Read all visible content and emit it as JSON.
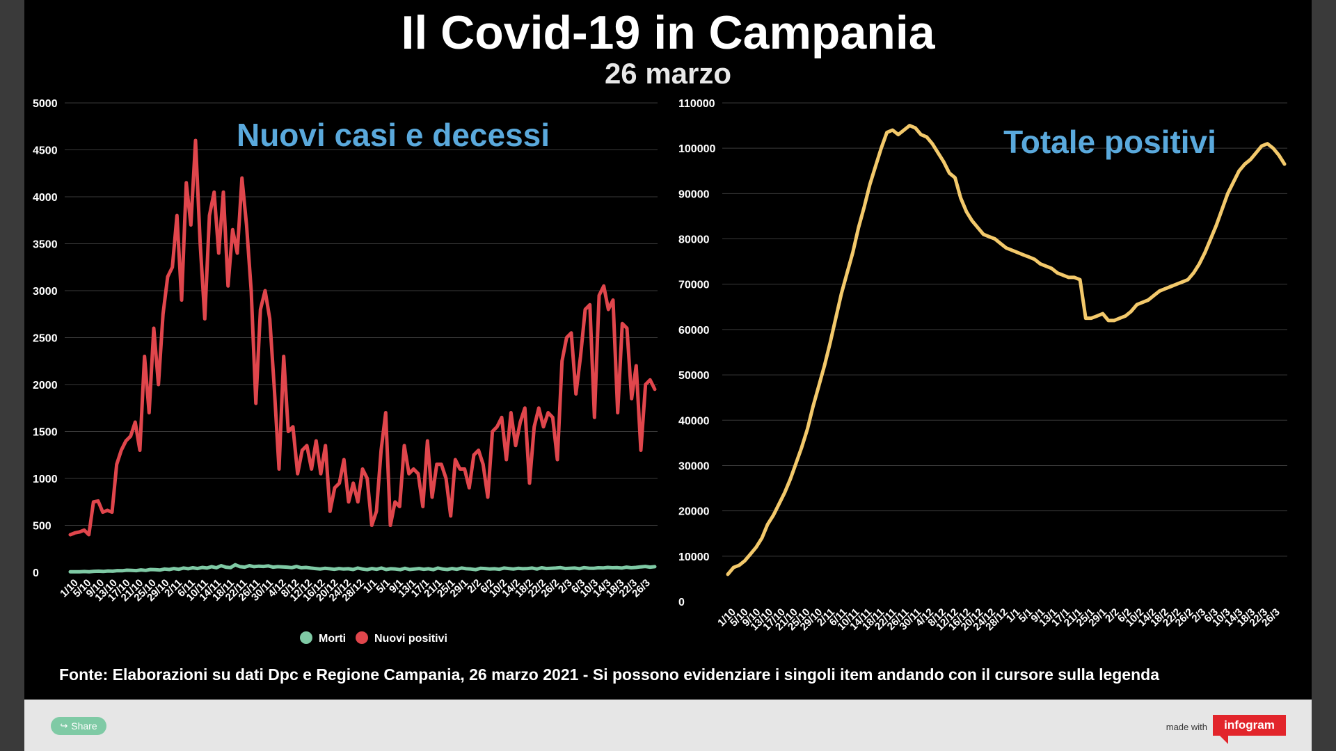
{
  "title": "Il Covid-19 in Campania",
  "subtitle": "26 marzo",
  "source": "Fonte: Elaborazioni su dati Dpc e Regione Campania, 26 marzo 2021 - Si possono evidenziare i singoli item andando con il cursore sulla legenda",
  "footer": {
    "share_label": "Share",
    "made_with": "made with",
    "brand": "infogram"
  },
  "colors": {
    "nuovi_positivi": "#e0464c",
    "morti": "#7fcaa5",
    "totale_positivi": "#f3c96b",
    "chart_title": "#5aa9dc"
  },
  "chart_data": [
    {
      "type": "line",
      "title": "Nuovi casi e decessi",
      "ylim": [
        0,
        5000
      ],
      "yticks": [
        0,
        500,
        1000,
        1500,
        2000,
        2500,
        3000,
        3500,
        4000,
        4500,
        5000
      ],
      "xticks": [
        "1/10",
        "5/10",
        "9/10",
        "13/10",
        "17/10",
        "21/10",
        "25/10",
        "29/10",
        "2/11",
        "6/11",
        "10/11",
        "14/11",
        "18/11",
        "22/11",
        "26/11",
        "30/11",
        "4/12",
        "8/12",
        "12/12",
        "16/12",
        "20/12",
        "24/12",
        "28/12",
        "1/1",
        "5/1",
        "9/1",
        "13/1",
        "17/1",
        "21/1",
        "25/1",
        "29/1",
        "2/2",
        "6/2",
        "10/2",
        "14/2",
        "18/2",
        "22/2",
        "26/2",
        "2/3",
        "6/3",
        "10/3",
        "14/3",
        "18/3",
        "22/3",
        "26/3"
      ],
      "legend": [
        "Morti",
        "Nuovi positivi"
      ],
      "legend_position": "bottom",
      "grid": true,
      "series": [
        {
          "name": "Nuovi positivi",
          "values": [
            400,
            420,
            430,
            450,
            400,
            750,
            760,
            640,
            660,
            640,
            1150,
            1300,
            1400,
            1450,
            1600,
            1300,
            2300,
            1700,
            2600,
            2000,
            2750,
            3150,
            3250,
            3800,
            2900,
            4150,
            3700,
            4600,
            3500,
            2700,
            3800,
            4050,
            3400,
            4050,
            3050,
            3650,
            3400,
            4200,
            3700,
            3000,
            1800,
            2800,
            3000,
            2700,
            1950,
            1100,
            2300,
            1500,
            1550,
            1050,
            1300,
            1350,
            1100,
            1400,
            1050,
            1350,
            650,
            900,
            950,
            1200,
            750,
            950,
            750,
            1100,
            1000,
            500,
            650,
            1300,
            1700,
            500,
            750,
            700,
            1350,
            1050,
            1100,
            1050,
            700,
            1400,
            800,
            1150,
            1150,
            1000,
            600,
            1200,
            1100,
            1100,
            900,
            1250,
            1300,
            1150,
            800,
            1500,
            1550,
            1650,
            1200,
            1700,
            1350,
            1600,
            1750,
            950,
            1550,
            1750,
            1550,
            1700,
            1650,
            1200,
            2250,
            2500,
            2550,
            1900,
            2300,
            2800,
            2850,
            1650,
            2950,
            3050,
            2800,
            2900,
            1700,
            2650,
            2600,
            1850,
            2200,
            1300,
            2000,
            2050,
            1950
          ]
        },
        {
          "name": "Morti",
          "values": [
            5,
            6,
            5,
            8,
            6,
            10,
            12,
            9,
            14,
            12,
            18,
            16,
            22,
            20,
            18,
            25,
            20,
            30,
            28,
            24,
            35,
            30,
            40,
            32,
            45,
            38,
            48,
            40,
            52,
            45,
            60,
            48,
            70,
            55,
            50,
            80,
            60,
            55,
            70,
            60,
            65,
            62,
            68,
            55,
            60,
            58,
            55,
            50,
            62,
            48,
            52,
            45,
            40,
            35,
            42,
            38,
            32,
            40,
            35,
            38,
            30,
            45,
            35,
            28,
            40,
            32,
            45,
            30,
            38,
            35,
            28,
            42,
            30,
            35,
            40,
            32,
            38,
            28,
            45,
            35,
            30,
            40,
            32,
            45,
            38,
            35,
            28,
            42,
            40,
            35,
            38,
            32,
            45,
            40,
            35,
            42,
            38,
            40,
            45,
            35,
            48,
            40,
            42,
            45,
            50,
            40,
            42,
            45,
            38,
            50,
            44,
            42,
            48,
            46,
            52,
            48,
            50,
            45,
            55,
            48,
            52,
            58,
            62,
            55,
            60
          ]
        }
      ]
    },
    {
      "type": "line",
      "title": "Totale positivi",
      "ylim": [
        0,
        110000
      ],
      "yticks": [
        0,
        10000,
        20000,
        30000,
        40000,
        50000,
        60000,
        70000,
        80000,
        90000,
        100000,
        110000
      ],
      "xticks": [
        "1/10",
        "5/10",
        "9/10",
        "13/10",
        "17/10",
        "21/10",
        "25/10",
        "29/10",
        "2/11",
        "6/11",
        "10/11",
        "14/11",
        "18/11",
        "22/11",
        "26/11",
        "30/11",
        "4/12",
        "8/12",
        "12/12",
        "16/12",
        "20/12",
        "24/12",
        "28/12",
        "1/1",
        "5/1",
        "9/1",
        "13/1",
        "17/1",
        "21/1",
        "25/1",
        "29/1",
        "2/2",
        "6/2",
        "10/2",
        "14/2",
        "18/2",
        "22/2",
        "26/2",
        "2/3",
        "6/3",
        "10/3",
        "14/3",
        "18/3",
        "22/3",
        "26/3"
      ],
      "grid": true,
      "series": [
        {
          "name": "Totale positivi",
          "values": [
            6000,
            7500,
            8000,
            9000,
            10500,
            12000,
            14000,
            17000,
            19000,
            21500,
            24000,
            27000,
            30500,
            34000,
            38000,
            43000,
            47500,
            52000,
            57000,
            62500,
            68000,
            72500,
            77000,
            82500,
            87000,
            92000,
            96000,
            100000,
            103500,
            104000,
            103000,
            104000,
            105000,
            104500,
            103000,
            102500,
            101000,
            99000,
            97000,
            94500,
            93500,
            89000,
            86000,
            84000,
            82500,
            81000,
            80500,
            80000,
            79000,
            78000,
            77500,
            77000,
            76500,
            76000,
            75500,
            74500,
            74000,
            73500,
            72500,
            72000,
            71500,
            71500,
            71000,
            62500,
            62500,
            63000,
            63500,
            62000,
            62000,
            62500,
            63000,
            64000,
            65500,
            66000,
            66500,
            67500,
            68500,
            69000,
            69500,
            70000,
            70500,
            71000,
            72500,
            74500,
            77000,
            80000,
            83000,
            86500,
            90000,
            92500,
            95000,
            96500,
            97500,
            99000,
            100500,
            101000,
            100000,
            98500,
            96500
          ]
        }
      ]
    }
  ]
}
